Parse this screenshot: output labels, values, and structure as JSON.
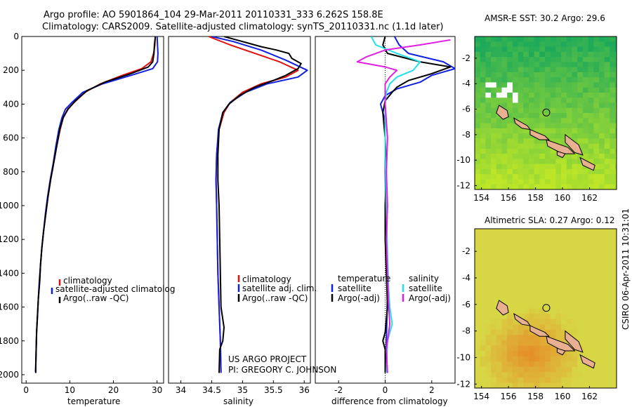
{
  "header": {
    "line1": "Argo profile: AO 5901864_104 29-Mar-2011 20110331_333 6.262S 158.8E",
    "line2": "Climatology: CARS2009. Satellite-adjusted climatology: synTS_20110331.nc (1.1d later)"
  },
  "credits": {
    "project": "US ARGO PROJECT",
    "pi": "PI: GREGORY C. JOHNSON",
    "stamp": "CSIRO 06-Apr-2011 10:31:01"
  },
  "colors": {
    "climatology": "#e01010",
    "satellite": "#1020e0",
    "argo": "#000000",
    "sat_diff_sal": "#20e0e8",
    "argo_diff_sal": "#e020e0"
  },
  "depth_axis": {
    "ticks": [
      0,
      200,
      400,
      600,
      800,
      1000,
      1200,
      1400,
      1600,
      1800,
      2000
    ],
    "range": [
      0,
      2050
    ]
  },
  "chart_data": [
    {
      "type": "line",
      "xlabel": "temperature",
      "ylabel": "",
      "xlim": [
        -1,
        31.5
      ],
      "ylim": [
        2050,
        0
      ],
      "xticks": [
        0,
        10,
        20,
        30
      ],
      "legend": [
        "climatology",
        "satellite-adjusted climatolog",
        "Argo(..raw -QC)"
      ],
      "series": [
        {
          "name": "climatology",
          "color": "#e01010",
          "points": [
            [
              29.6,
              0
            ],
            [
              29.5,
              50
            ],
            [
              29.2,
              100
            ],
            [
              28.6,
              150
            ],
            [
              26.5,
              190
            ],
            [
              22,
              230
            ],
            [
              17,
              280
            ],
            [
              13.5,
              330
            ],
            [
              11,
              390
            ],
            [
              9.5,
              430
            ],
            [
              8.5,
              480
            ],
            [
              7.8,
              550
            ],
            [
              7,
              650
            ],
            [
              6.3,
              750
            ],
            [
              5.6,
              850
            ],
            [
              5,
              950
            ],
            [
              4.5,
              1050
            ],
            [
              4,
              1150
            ],
            [
              3.6,
              1250
            ],
            [
              3.3,
              1350
            ],
            [
              3.1,
              1450
            ],
            [
              2.8,
              1550
            ],
            [
              2.6,
              1650
            ],
            [
              2.4,
              1750
            ],
            [
              2.3,
              1850
            ],
            [
              2.2,
              1950
            ],
            [
              2.15,
              1985
            ]
          ]
        },
        {
          "name": "satellite-adjusted climatolog",
          "color": "#1020e0",
          "points": [
            [
              30,
              0
            ],
            [
              30.1,
              50
            ],
            [
              30.2,
              100
            ],
            [
              30.1,
              150
            ],
            [
              29,
              190
            ],
            [
              24,
              230
            ],
            [
              17.5,
              280
            ],
            [
              13,
              330
            ],
            [
              10.5,
              390
            ],
            [
              9,
              430
            ],
            [
              8.2,
              480
            ],
            [
              7.5,
              550
            ],
            [
              6.8,
              650
            ],
            [
              6.2,
              750
            ],
            [
              5.5,
              850
            ],
            [
              4.9,
              950
            ],
            [
              4.4,
              1050
            ],
            [
              4,
              1150
            ],
            [
              3.6,
              1250
            ],
            [
              3.3,
              1350
            ],
            [
              3,
              1450
            ],
            [
              2.8,
              1550
            ],
            [
              2.6,
              1650
            ],
            [
              2.4,
              1750
            ],
            [
              2.3,
              1850
            ],
            [
              2.2,
              1950
            ],
            [
              2.15,
              1985
            ]
          ]
        },
        {
          "name": "Argo(..raw -QC)",
          "color": "#000000",
          "points": [
            [
              29.6,
              0
            ],
            [
              29.4,
              50
            ],
            [
              29.3,
              100
            ],
            [
              29,
              150
            ],
            [
              28,
              180
            ],
            [
              24,
              220
            ],
            [
              18,
              270
            ],
            [
              14,
              320
            ],
            [
              11.3,
              380
            ],
            [
              9.6,
              430
            ],
            [
              8.5,
              480
            ],
            [
              7.7,
              550
            ],
            [
              7,
              650
            ],
            [
              6.3,
              750
            ],
            [
              5.6,
              850
            ],
            [
              5,
              950
            ],
            [
              4.5,
              1050
            ],
            [
              4,
              1150
            ],
            [
              3.6,
              1250
            ],
            [
              3.3,
              1350
            ],
            [
              3.1,
              1450
            ],
            [
              2.8,
              1550
            ],
            [
              2.6,
              1650
            ],
            [
              2.4,
              1750
            ],
            [
              2.3,
              1850
            ],
            [
              2.2,
              1950
            ],
            [
              2.2,
              1990
            ]
          ]
        }
      ]
    },
    {
      "type": "line",
      "xlabel": "salinity",
      "ylabel": "",
      "xlim": [
        33.8,
        36.1
      ],
      "ylim": [
        2050,
        0
      ],
      "xticks": [
        34,
        34.5,
        35,
        35.5,
        36
      ],
      "legend": [
        "climatology",
        "satellite adj. clim.",
        "Argo(..raw -QC)"
      ],
      "series": [
        {
          "name": "climatology",
          "color": "#e01010",
          "points": [
            [
              34.45,
              0
            ],
            [
              34.8,
              50
            ],
            [
              35.2,
              100
            ],
            [
              35.6,
              150
            ],
            [
              35.9,
              200
            ],
            [
              35.7,
              240
            ],
            [
              35.3,
              280
            ],
            [
              35,
              330
            ],
            [
              34.8,
              390
            ],
            [
              34.7,
              450
            ],
            [
              34.62,
              550
            ],
            [
              34.58,
              700
            ],
            [
              34.57,
              850
            ],
            [
              34.58,
              1000
            ],
            [
              34.59,
              1200
            ],
            [
              34.6,
              1400
            ],
            [
              34.62,
              1600
            ],
            [
              34.64,
              1800
            ],
            [
              34.65,
              1985
            ]
          ]
        },
        {
          "name": "satellite adj. clim.",
          "color": "#1020e0",
          "points": [
            [
              34.5,
              0
            ],
            [
              34.85,
              30
            ],
            [
              35.3,
              80
            ],
            [
              35.7,
              140
            ],
            [
              36.05,
              200
            ],
            [
              35.9,
              240
            ],
            [
              35.4,
              280
            ],
            [
              35.05,
              330
            ],
            [
              34.8,
              390
            ],
            [
              34.68,
              450
            ],
            [
              34.61,
              550
            ],
            [
              34.58,
              700
            ],
            [
              34.57,
              850
            ],
            [
              34.58,
              1000
            ],
            [
              34.59,
              1200
            ],
            [
              34.6,
              1400
            ],
            [
              34.62,
              1600
            ],
            [
              34.64,
              1800
            ],
            [
              34.65,
              1990
            ]
          ]
        },
        {
          "name": "Argo(..raw -QC)",
          "color": "#000000",
          "points": [
            [
              34.7,
              0
            ],
            [
              34.9,
              20
            ],
            [
              35.1,
              40
            ],
            [
              35.3,
              60
            ],
            [
              35.55,
              80
            ],
            [
              35.75,
              100
            ],
            [
              35.8,
              130
            ],
            [
              35.95,
              160
            ],
            [
              35.9,
              190
            ],
            [
              35.7,
              230
            ],
            [
              35.5,
              260
            ],
            [
              35.2,
              300
            ],
            [
              34.95,
              350
            ],
            [
              34.78,
              400
            ],
            [
              34.68,
              450
            ],
            [
              34.62,
              550
            ],
            [
              34.6,
              700
            ],
            [
              34.6,
              850
            ],
            [
              34.62,
              1000
            ],
            [
              34.63,
              1200
            ],
            [
              34.64,
              1400
            ],
            [
              34.65,
              1600
            ],
            [
              34.7,
              1720
            ],
            [
              34.68,
              1800
            ],
            [
              34.63,
              1850
            ],
            [
              34.62,
              1990
            ]
          ]
        }
      ]
    },
    {
      "type": "line",
      "xlabel": "difference from climatology",
      "ylabel": "",
      "xlim": [
        -3,
        3
      ],
      "ylim": [
        2050,
        0
      ],
      "xticks": [
        -2,
        0,
        2
      ],
      "legend_groups": [
        {
          "title": "temperature",
          "entries": [
            "satellite",
            "Argo(-adj)"
          ]
        },
        {
          "title": "salinity",
          "entries": [
            "satellite",
            "Argo(-adj)"
          ]
        }
      ],
      "series": [
        {
          "name": "temperature satellite",
          "color": "#1020e0",
          "points": [
            [
              0.4,
              0
            ],
            [
              0.6,
              50
            ],
            [
              1,
              100
            ],
            [
              2.5,
              150
            ],
            [
              3,
              190
            ],
            [
              2,
              230
            ],
            [
              1.5,
              270
            ],
            [
              0.5,
              310
            ],
            [
              0,
              350
            ],
            [
              -0.2,
              400
            ],
            [
              0,
              500
            ],
            [
              0,
              800
            ],
            [
              0.05,
              1200
            ],
            [
              0.1,
              1500
            ],
            [
              0.05,
              1800
            ],
            [
              0,
              1985
            ]
          ]
        },
        {
          "name": "temperature Argo(-adj)",
          "color": "#000000",
          "points": [
            [
              0,
              0
            ],
            [
              -0.1,
              50
            ],
            [
              0.1,
              100
            ],
            [
              1.5,
              150
            ],
            [
              2.8,
              180
            ],
            [
              2,
              220
            ],
            [
              1,
              260
            ],
            [
              0.5,
              300
            ],
            [
              0.3,
              330
            ],
            [
              0,
              380
            ],
            [
              -0.1,
              450
            ],
            [
              0,
              600
            ],
            [
              0.05,
              800
            ],
            [
              0,
              1000
            ],
            [
              0,
              1200
            ],
            [
              0.05,
              1400
            ],
            [
              0.1,
              1600
            ],
            [
              0,
              1750
            ],
            [
              -0.1,
              1800
            ],
            [
              0,
              1850
            ],
            [
              0,
              1990
            ]
          ]
        },
        {
          "name": "salinity satellite",
          "color": "#20e0e8",
          "points": [
            [
              -0.6,
              0
            ],
            [
              -0.4,
              50
            ],
            [
              0.5,
              100
            ],
            [
              1.5,
              150
            ],
            [
              1.2,
              200
            ],
            [
              0.5,
              240
            ],
            [
              0.2,
              280
            ],
            [
              0.05,
              330
            ],
            [
              0,
              400
            ],
            [
              0,
              700
            ],
            [
              0.05,
              1000
            ],
            [
              0.1,
              1300
            ],
            [
              0.15,
              1500
            ],
            [
              0.2,
              1600
            ],
            [
              0.3,
              1700
            ],
            [
              0.1,
              1800
            ],
            [
              0.05,
              1990
            ]
          ]
        },
        {
          "name": "salinity Argo(-adj)",
          "color": "#e020e0",
          "points": [
            [
              2.8,
              20
            ],
            [
              1.5,
              50
            ],
            [
              0,
              80
            ],
            [
              -0.8,
              120
            ],
            [
              -1.2,
              150
            ],
            [
              0,
              180
            ],
            [
              0.5,
              200
            ],
            [
              0.2,
              240
            ],
            [
              0,
              280
            ],
            [
              0,
              400
            ],
            [
              0.1,
              600
            ],
            [
              0.05,
              800
            ],
            [
              0.1,
              1000
            ],
            [
              0.05,
              1200
            ],
            [
              0.1,
              1400
            ],
            [
              0.15,
              1600
            ],
            [
              0.2,
              1700
            ],
            [
              0.1,
              1800
            ],
            [
              0.05,
              1850
            ],
            [
              0.1,
              1990
            ]
          ]
        }
      ]
    }
  ],
  "maps": [
    {
      "title": "AMSR-E SST: 30.2 Argo: 29.6",
      "xlim": [
        153.5,
        164
      ],
      "ylim": [
        -12.3,
        -0.3
      ],
      "xticks": [
        154,
        156,
        158,
        160,
        162
      ],
      "yticks": [
        -2,
        -4,
        -6,
        -8,
        -10,
        -12
      ],
      "marker": [
        158.8,
        -6.262
      ]
    },
    {
      "title": "Altimetric SLA: 0.27 Argo: 0.12",
      "xlim": [
        153.5,
        164
      ],
      "ylim": [
        -12.3,
        -0.3
      ],
      "xticks": [
        154,
        156,
        158,
        160,
        162
      ],
      "yticks": [
        -2,
        -4,
        -6,
        -8,
        -10,
        -12
      ],
      "marker": [
        158.8,
        -6.262
      ]
    }
  ]
}
